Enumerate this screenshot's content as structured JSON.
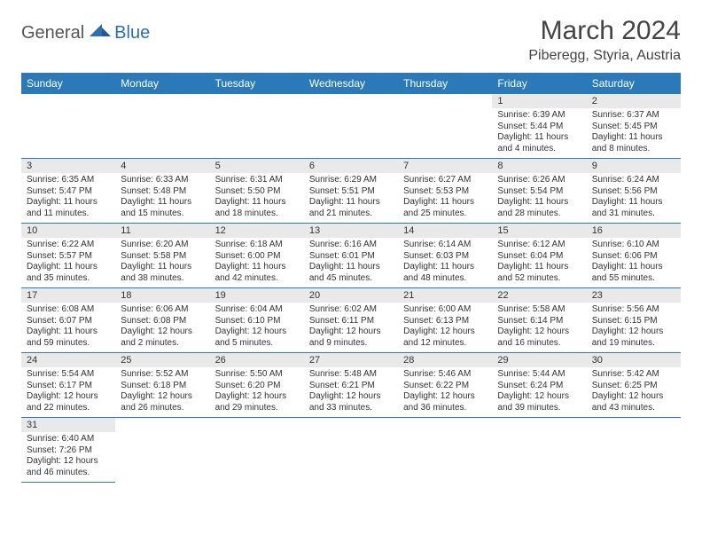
{
  "logo": {
    "part1": "General",
    "part2": "Blue",
    "shape_color": "#2a6fb5"
  },
  "title": "March 2024",
  "subtitle": "Piberegg, Styria, Austria",
  "dayHeaders": [
    "Sunday",
    "Monday",
    "Tuesday",
    "Wednesday",
    "Thursday",
    "Friday",
    "Saturday"
  ],
  "colors": {
    "header_bg": "#2a7ab9",
    "header_text": "#ffffff",
    "daynum_bg": "#e9e9e9",
    "border": "#2a7ab9"
  },
  "weeks": [
    [
      null,
      null,
      null,
      null,
      null,
      {
        "n": "1",
        "sunrise": "6:39 AM",
        "sunset": "5:44 PM",
        "daylight": "11 hours and 4 minutes."
      },
      {
        "n": "2",
        "sunrise": "6:37 AM",
        "sunset": "5:45 PM",
        "daylight": "11 hours and 8 minutes."
      }
    ],
    [
      {
        "n": "3",
        "sunrise": "6:35 AM",
        "sunset": "5:47 PM",
        "daylight": "11 hours and 11 minutes."
      },
      {
        "n": "4",
        "sunrise": "6:33 AM",
        "sunset": "5:48 PM",
        "daylight": "11 hours and 15 minutes."
      },
      {
        "n": "5",
        "sunrise": "6:31 AM",
        "sunset": "5:50 PM",
        "daylight": "11 hours and 18 minutes."
      },
      {
        "n": "6",
        "sunrise": "6:29 AM",
        "sunset": "5:51 PM",
        "daylight": "11 hours and 21 minutes."
      },
      {
        "n": "7",
        "sunrise": "6:27 AM",
        "sunset": "5:53 PM",
        "daylight": "11 hours and 25 minutes."
      },
      {
        "n": "8",
        "sunrise": "6:26 AM",
        "sunset": "5:54 PM",
        "daylight": "11 hours and 28 minutes."
      },
      {
        "n": "9",
        "sunrise": "6:24 AM",
        "sunset": "5:56 PM",
        "daylight": "11 hours and 31 minutes."
      }
    ],
    [
      {
        "n": "10",
        "sunrise": "6:22 AM",
        "sunset": "5:57 PM",
        "daylight": "11 hours and 35 minutes."
      },
      {
        "n": "11",
        "sunrise": "6:20 AM",
        "sunset": "5:58 PM",
        "daylight": "11 hours and 38 minutes."
      },
      {
        "n": "12",
        "sunrise": "6:18 AM",
        "sunset": "6:00 PM",
        "daylight": "11 hours and 42 minutes."
      },
      {
        "n": "13",
        "sunrise": "6:16 AM",
        "sunset": "6:01 PM",
        "daylight": "11 hours and 45 minutes."
      },
      {
        "n": "14",
        "sunrise": "6:14 AM",
        "sunset": "6:03 PM",
        "daylight": "11 hours and 48 minutes."
      },
      {
        "n": "15",
        "sunrise": "6:12 AM",
        "sunset": "6:04 PM",
        "daylight": "11 hours and 52 minutes."
      },
      {
        "n": "16",
        "sunrise": "6:10 AM",
        "sunset": "6:06 PM",
        "daylight": "11 hours and 55 minutes."
      }
    ],
    [
      {
        "n": "17",
        "sunrise": "6:08 AM",
        "sunset": "6:07 PM",
        "daylight": "11 hours and 59 minutes."
      },
      {
        "n": "18",
        "sunrise": "6:06 AM",
        "sunset": "6:08 PM",
        "daylight": "12 hours and 2 minutes."
      },
      {
        "n": "19",
        "sunrise": "6:04 AM",
        "sunset": "6:10 PM",
        "daylight": "12 hours and 5 minutes."
      },
      {
        "n": "20",
        "sunrise": "6:02 AM",
        "sunset": "6:11 PM",
        "daylight": "12 hours and 9 minutes."
      },
      {
        "n": "21",
        "sunrise": "6:00 AM",
        "sunset": "6:13 PM",
        "daylight": "12 hours and 12 minutes."
      },
      {
        "n": "22",
        "sunrise": "5:58 AM",
        "sunset": "6:14 PM",
        "daylight": "12 hours and 16 minutes."
      },
      {
        "n": "23",
        "sunrise": "5:56 AM",
        "sunset": "6:15 PM",
        "daylight": "12 hours and 19 minutes."
      }
    ],
    [
      {
        "n": "24",
        "sunrise": "5:54 AM",
        "sunset": "6:17 PM",
        "daylight": "12 hours and 22 minutes."
      },
      {
        "n": "25",
        "sunrise": "5:52 AM",
        "sunset": "6:18 PM",
        "daylight": "12 hours and 26 minutes."
      },
      {
        "n": "26",
        "sunrise": "5:50 AM",
        "sunset": "6:20 PM",
        "daylight": "12 hours and 29 minutes."
      },
      {
        "n": "27",
        "sunrise": "5:48 AM",
        "sunset": "6:21 PM",
        "daylight": "12 hours and 33 minutes."
      },
      {
        "n": "28",
        "sunrise": "5:46 AM",
        "sunset": "6:22 PM",
        "daylight": "12 hours and 36 minutes."
      },
      {
        "n": "29",
        "sunrise": "5:44 AM",
        "sunset": "6:24 PM",
        "daylight": "12 hours and 39 minutes."
      },
      {
        "n": "30",
        "sunrise": "5:42 AM",
        "sunset": "6:25 PM",
        "daylight": "12 hours and 43 minutes."
      }
    ],
    [
      {
        "n": "31",
        "sunrise": "6:40 AM",
        "sunset": "7:26 PM",
        "daylight": "12 hours and 46 minutes."
      },
      null,
      null,
      null,
      null,
      null,
      null
    ]
  ]
}
